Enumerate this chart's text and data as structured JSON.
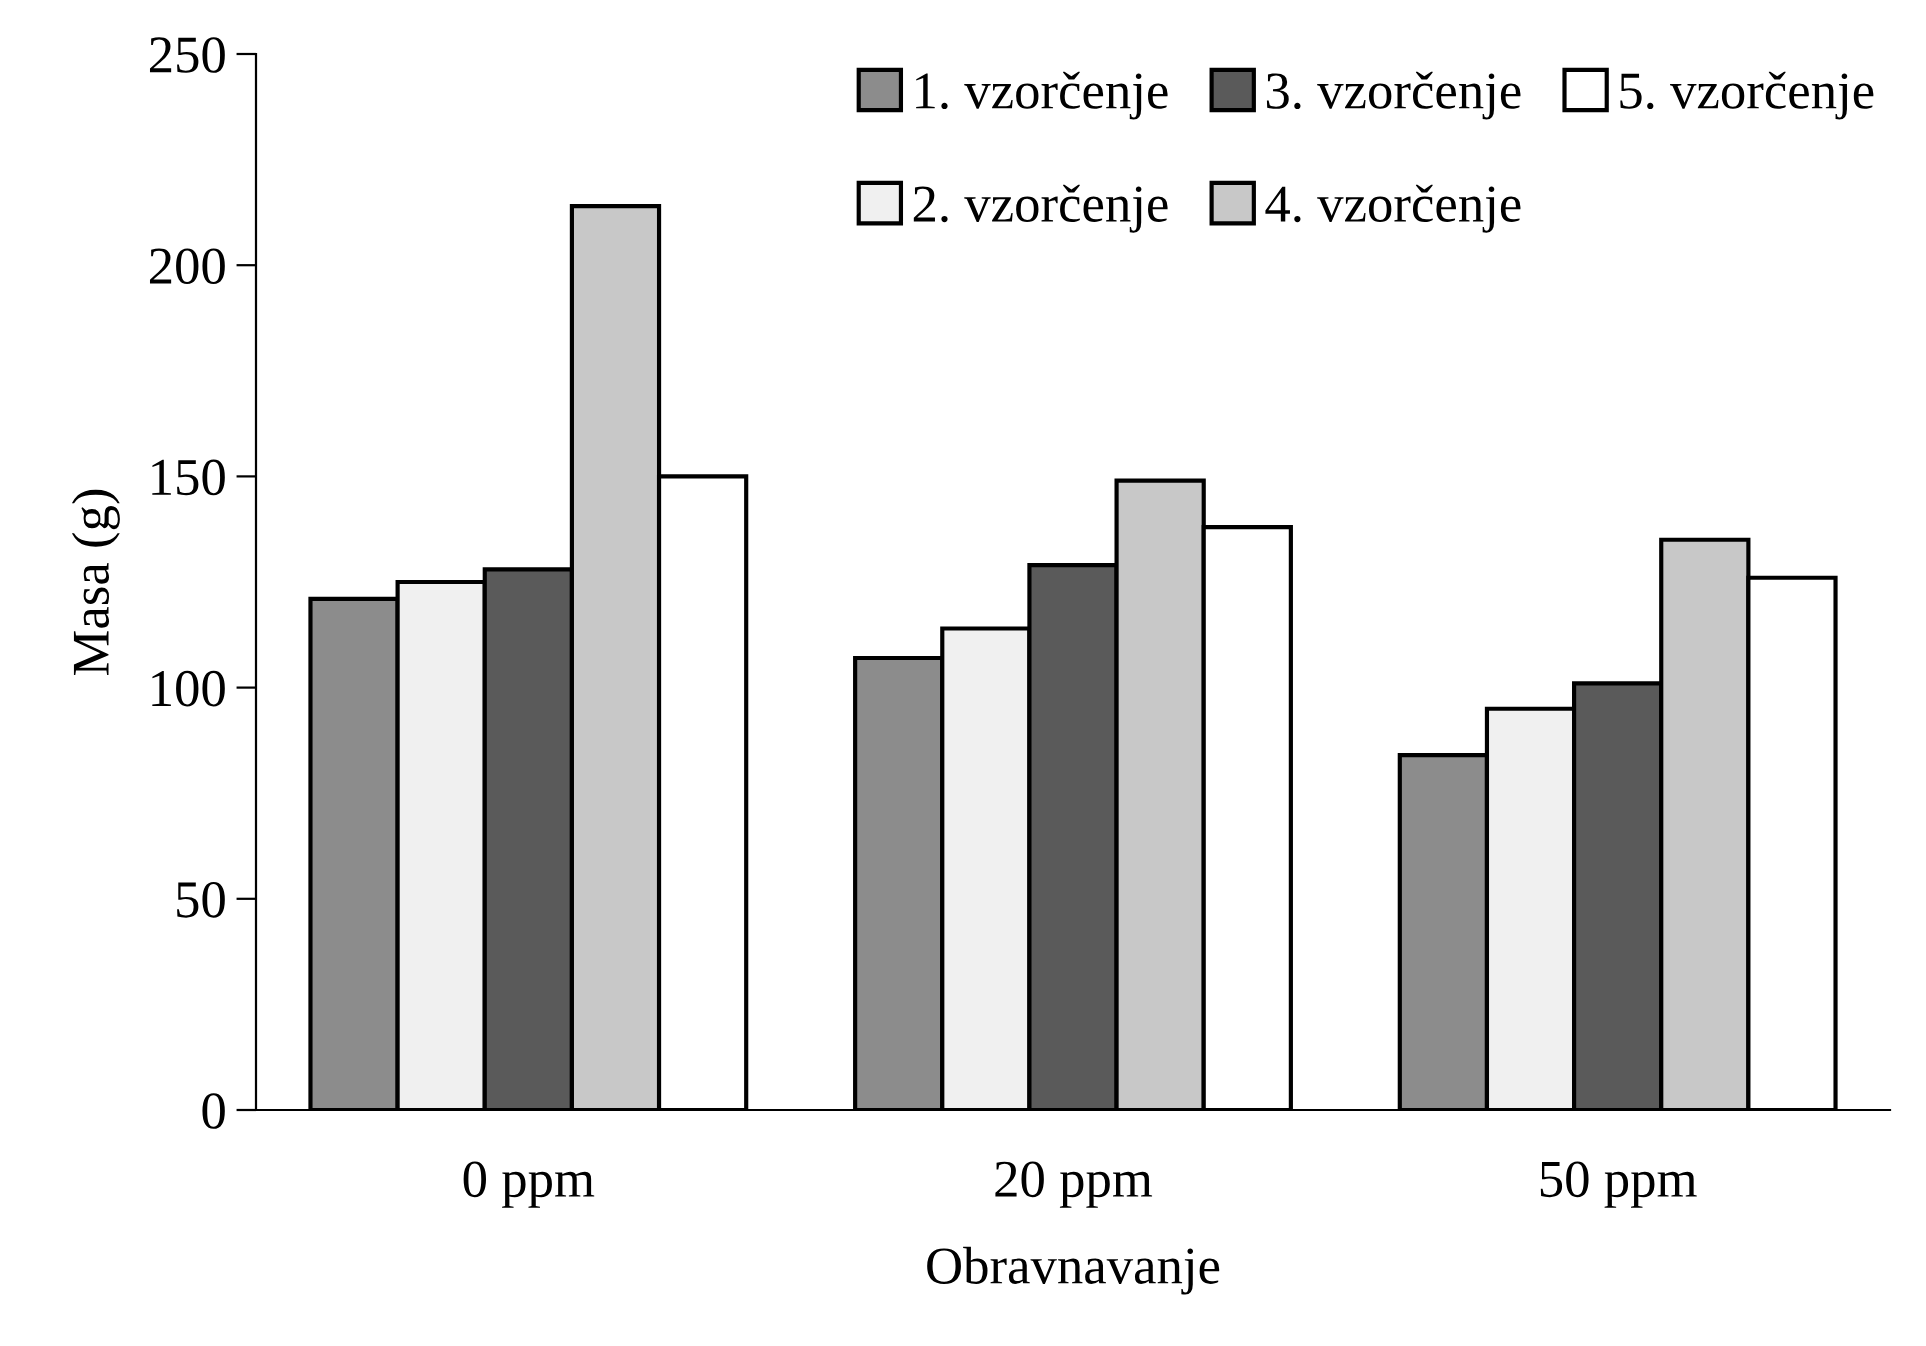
{
  "chart_data": {
    "type": "bar",
    "xlabel": "Obravnavanje",
    "ylabel": "Masa (g)",
    "categories": [
      "0 ppm",
      "20 ppm",
      "50 ppm"
    ],
    "series": [
      {
        "name": "1. vzorčenje",
        "color": "#8c8c8c",
        "values": [
          121,
          107,
          84
        ]
      },
      {
        "name": "2. vzorčenje",
        "color": "#f0f0f0",
        "values": [
          125,
          114,
          95
        ]
      },
      {
        "name": "3. vzorčenje",
        "color": "#5a5a5a",
        "values": [
          128,
          129,
          101
        ]
      },
      {
        "name": "4. vzorčenje",
        "color": "#c8c8c8",
        "values": [
          214,
          149,
          135
        ]
      },
      {
        "name": "5. vzorčenje",
        "color": "#ffffff",
        "values": [
          150,
          138,
          126
        ]
      }
    ],
    "ylim": [
      0,
      250
    ],
    "yticks": [
      0,
      50,
      100,
      150,
      200,
      250
    ],
    "grid": false,
    "legend": "top right"
  }
}
